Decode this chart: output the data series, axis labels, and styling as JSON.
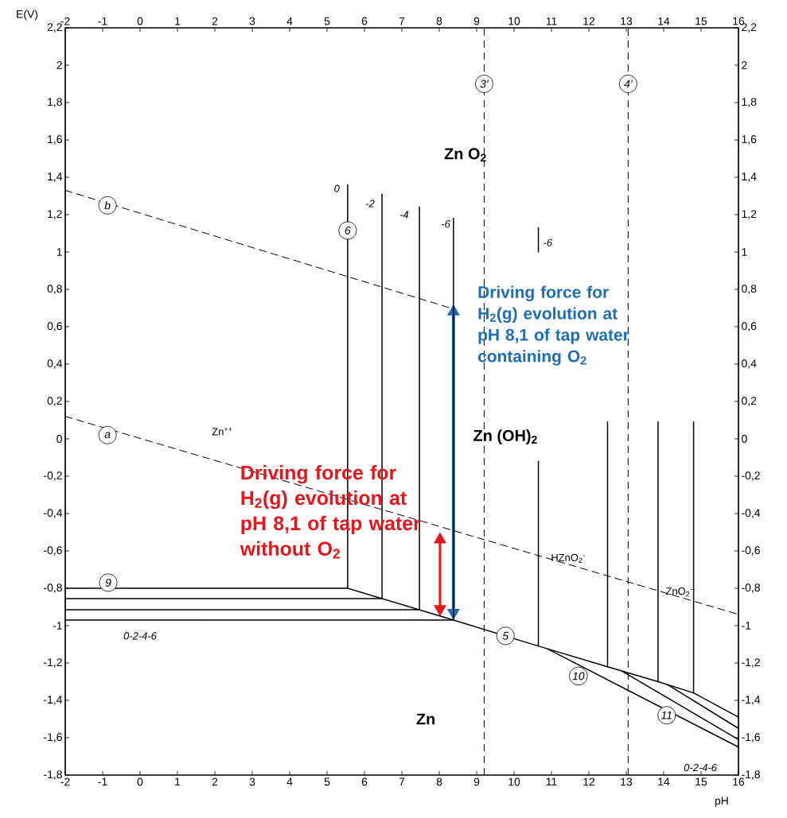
{
  "chart_data": {
    "type": "line",
    "xlabel": "pH",
    "ylabel": "E(V)",
    "xlim": [
      -2,
      16
    ],
    "ylim": [
      -1.8,
      2.2
    ],
    "xticks": [
      -2,
      -1,
      0,
      1,
      2,
      3,
      4,
      5,
      6,
      7,
      8,
      9,
      10,
      11,
      12,
      13,
      14,
      15,
      16
    ],
    "x2lim": [
      -2,
      16
    ],
    "x2ticks": [
      -2,
      -1,
      0,
      1,
      2,
      3,
      4,
      5,
      6,
      7,
      8,
      9,
      10,
      11,
      12,
      13,
      14,
      15,
      16
    ],
    "yticks": [
      {
        "value": -1.8,
        "label": "-1,8"
      },
      {
        "value": -1.6,
        "label": "-1,6"
      },
      {
        "value": -1.4,
        "label": "-1,4"
      },
      {
        "value": -1.2,
        "label": "-1,2"
      },
      -1,
      {
        "value": -0.8,
        "label": "-0,8"
      },
      {
        "value": -0.6,
        "label": "-0,6"
      },
      {
        "value": -0.4,
        "label": "-0,4"
      },
      {
        "value": -0.2,
        "label": "-0,2"
      },
      0,
      {
        "value": 0.2,
        "label": "0,2"
      },
      {
        "value": 0.4,
        "label": "0,4"
      },
      {
        "value": 0.6,
        "label": "0,6"
      },
      {
        "value": 0.8,
        "label": "0,8"
      },
      1,
      {
        "value": 1.2,
        "label": "1,2"
      },
      {
        "value": 1.4,
        "label": "1,4"
      },
      {
        "value": 1.6,
        "label": "1,6"
      },
      {
        "value": 1.8,
        "label": "1,8"
      },
      2,
      {
        "value": 2.2,
        "label": "2,2"
      }
    ],
    "y2lim": [
      -1.8,
      2.2
    ],
    "y2ticks": [
      {
        "value": -1.8,
        "label": "-1,8"
      },
      {
        "value": -1.6,
        "label": "-1,6"
      },
      {
        "value": -1.4,
        "label": "-1,4"
      },
      {
        "value": -1.2,
        "label": "-1,2"
      },
      -1,
      {
        "value": -0.8,
        "label": "-0,8"
      },
      {
        "value": -0.6,
        "label": "-0,6"
      },
      {
        "value": -0.4,
        "label": "-0,4"
      },
      {
        "value": -0.2,
        "label": "-0,2"
      },
      0,
      {
        "value": 0.2,
        "label": "0,2"
      },
      {
        "value": 0.4,
        "label": "0,4"
      },
      {
        "value": 0.6,
        "label": "0,6"
      },
      {
        "value": 0.8,
        "label": "0,8"
      },
      1,
      {
        "value": 1.2,
        "label": "1,2"
      },
      {
        "value": 1.4,
        "label": "1,4"
      },
      {
        "value": 1.6,
        "label": "1,6"
      },
      {
        "value": 1.8,
        "label": "1,8"
      },
      2,
      {
        "value": 2.2,
        "label": "2,2"
      }
    ],
    "series": [
      {
        "color": "#000000",
        "line_style": "dashed",
        "x": [
          -2,
          16
        ],
        "values": [
          0.12,
          -0.94
        ]
      },
      {
        "color": "#000000",
        "line_style": "dashed",
        "x": [
          -2,
          8.3
        ],
        "values": [
          1.33,
          0.7
        ]
      },
      {
        "color": "#000000",
        "x": [
          -2,
          6.47
        ],
        "values": [
          -0.855,
          -0.855
        ]
      },
      {
        "color": "#000000",
        "x": [
          -2,
          7.47
        ],
        "values": [
          -0.915,
          -0.915
        ]
      },
      {
        "color": "#000000",
        "x": [
          -2,
          8.38
        ],
        "values": [
          -0.97,
          -0.97
        ]
      },
      {
        "color": "#000000",
        "x": [
          -2,
          5.55,
          8.38,
          10.66,
          12.5,
          13.85,
          14.8,
          16
        ],
        "values": [
          -0.8,
          -0.8,
          -0.97,
          -1.11,
          -1.22,
          -1.3,
          -1.36,
          -1.49
        ]
      },
      {
        "color": "#000000",
        "x": [
          10.9,
          16
        ],
        "values": [
          -1.125,
          -1.65
        ]
      },
      {
        "color": "#000000",
        "x": [
          12.9,
          16
        ],
        "values": [
          -1.245,
          -1.61
        ]
      },
      {
        "color": "#000000",
        "x": [
          14.1,
          16
        ],
        "values": [
          -1.315,
          -1.55
        ]
      },
      {
        "color": "#000000",
        "x": [
          5.55,
          5.55
        ],
        "values": [
          1.36,
          -0.8
        ]
      },
      {
        "color": "#000000",
        "x": [
          6.47,
          6.47
        ],
        "values": [
          1.31,
          -0.855
        ]
      },
      {
        "color": "#000000",
        "x": [
          7.47,
          7.47
        ],
        "values": [
          1.24,
          -0.915
        ]
      },
      {
        "color": "#000000",
        "x": [
          8.38,
          8.38
        ],
        "values": [
          1.18,
          -0.97
        ]
      },
      {
        "color": "#000000",
        "x": [
          10.65,
          10.65
        ],
        "values": [
          -0.12,
          -1.105
        ]
      },
      {
        "color": "#000000",
        "x": [
          10.65,
          10.65
        ],
        "values": [
          1.13,
          1.0
        ]
      },
      {
        "color": "#000000",
        "x": [
          12.5,
          12.5
        ],
        "values": [
          0.09,
          -1.22
        ]
      },
      {
        "color": "#000000",
        "x": [
          13.85,
          13.85
        ],
        "values": [
          0.09,
          -1.3
        ]
      },
      {
        "color": "#000000",
        "x": [
          14.8,
          14.8
        ],
        "values": [
          0.09,
          -1.36
        ]
      }
    ],
    "ref_lines": [
      {
        "axis": "x",
        "value": 9.2,
        "line_style": "dashed"
      },
      {
        "axis": "x",
        "value": 13.05,
        "line_style": "dashed"
      }
    ],
    "annotations": [
      {
        "text": "a",
        "x": -0.87,
        "y": 0.02
      },
      {
        "text": "b",
        "x": -0.87,
        "y": 1.25
      },
      {
        "text": "6",
        "x": 5.55,
        "y": 1.115
      },
      {
        "text": "9",
        "x": -0.85,
        "y": -0.77
      },
      {
        "text": "5",
        "x": 9.77,
        "y": -1.055
      },
      {
        "text": "10",
        "x": 11.72,
        "y": -1.27
      },
      {
        "text": "11",
        "x": 14.08,
        "y": -1.48
      },
      {
        "text": "3'",
        "x": 9.2,
        "y": 1.9
      },
      {
        "text": "4'",
        "x": 13.05,
        "y": 1.9
      },
      "Zn O$_{2}$",
      "Zn (OH)$_{2}$",
      "Zn",
      "Zn$^{++}$",
      "HZnO$_{2}$$^{-}$",
      "ZnO$_{2}$$^{--}$",
      "0",
      "-2",
      "-4",
      "-6",
      "-6",
      "0-2-4-6",
      "0-2-4-6",
      "Driving force for H$_{2}$(g) evolution at pH 8,1 of tap water without O$_{2}$",
      "Driving force for H$_{2}$(g) evolution at pH 8,1 of tap water containing O$_{2}$"
    ]
  }
}
